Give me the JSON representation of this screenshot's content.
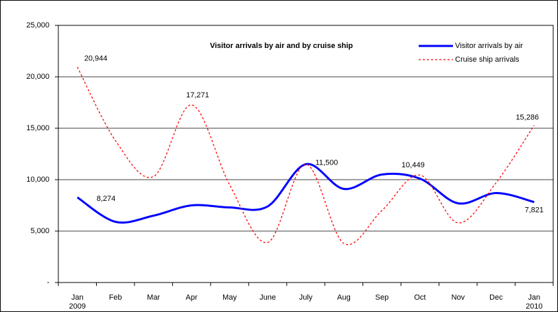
{
  "chart_data": {
    "type": "line",
    "title": "Visitor arrivals by air and by cruise ship",
    "categories": [
      "Jan 2009",
      "Feb",
      "Mar",
      "Apr",
      "May",
      "June",
      "July",
      "Aug",
      "Sep",
      "Oct",
      "Nov",
      "Dec",
      "Jan 2010"
    ],
    "series": [
      {
        "name": "Visitor arrivals by air",
        "color": "#0000ff",
        "dash": false,
        "values": [
          8274,
          5900,
          6500,
          7500,
          7300,
          7400,
          11500,
          9100,
          10500,
          10100,
          7700,
          8700,
          7821
        ],
        "value_labels": [
          "8,274",
          null,
          null,
          null,
          null,
          null,
          null,
          null,
          null,
          null,
          null,
          null,
          "7,821"
        ]
      },
      {
        "name": "Cruise ship arrivals",
        "color": "#ff0000",
        "dash": true,
        "values": [
          20944,
          13800,
          10300,
          17271,
          9500,
          3900,
          11500,
          3800,
          7000,
          10449,
          5800,
          9700,
          15286
        ],
        "value_labels": [
          "20,944",
          null,
          null,
          "17,271",
          null,
          null,
          "11,500",
          null,
          null,
          "10,449",
          null,
          null,
          "15,286"
        ]
      }
    ],
    "ylim": [
      0,
      25000
    ],
    "yticks": [
      {
        "value": 0,
        "label": "-"
      },
      {
        "value": 5000,
        "label": "5,000"
      },
      {
        "value": 10000,
        "label": "10,000"
      },
      {
        "value": 15000,
        "label": "15,000"
      },
      {
        "value": 20000,
        "label": "20,000"
      },
      {
        "value": 25000,
        "label": "25,000"
      }
    ],
    "grid": true,
    "legend": "top-right"
  }
}
